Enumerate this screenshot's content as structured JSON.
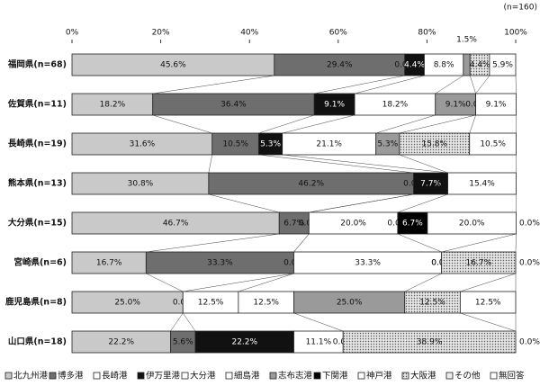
{
  "chart_data": {
    "type": "stacked-bar-horizontal",
    "note": "(n=160)",
    "categories": [
      "福岡県(n=68)",
      "佐賀県(n=11)",
      "長崎県(n=19)",
      "熊本県(n=13)",
      "大分県(n=15)",
      "宮崎県(n=6)",
      "鹿児島県(n=8)",
      "山口県(n=18)"
    ],
    "xlim": [
      0,
      100
    ],
    "xticks": [
      {
        "value": 0,
        "label": "0%"
      },
      {
        "value": 20,
        "label": "20%"
      },
      {
        "value": 40,
        "label": "40%"
      },
      {
        "value": 60,
        "label": "60%"
      },
      {
        "value": 80,
        "label": "80%"
      },
      {
        "value": 100,
        "label": "100%"
      }
    ],
    "grid": false,
    "series": [
      {
        "name": "北九州港",
        "color": "#c9c9c9",
        "values": [
          45.6,
          18.2,
          31.6,
          30.8,
          46.7,
          16.7,
          25.0,
          22.2
        ],
        "value_labels": [
          "45.6%",
          "18.2%",
          "31.6%",
          "30.8%",
          "46.7%",
          "16.7%",
          "25.0%",
          "22.2%"
        ]
      },
      {
        "name": "博多港",
        "color": "#6e6e6e",
        "values": [
          29.4,
          36.4,
          10.5,
          46.2,
          6.7,
          33.3,
          0.0,
          5.6
        ],
        "value_labels": [
          "29.4%",
          "36.4%",
          "10.5%",
          "46.2%",
          "6.7%",
          "33.3%",
          "0.0%",
          "5.6%"
        ]
      },
      {
        "name": "長崎港",
        "color": "#ffffff",
        "values": [
          0.0,
          null,
          null,
          0.0,
          0.0,
          0.0,
          12.5,
          null
        ],
        "value_labels": [
          "0.0%",
          null,
          null,
          "0.0%",
          "0.0%",
          "0.0%",
          "12.5%",
          null
        ]
      },
      {
        "name": "伊万里港",
        "color": "#111111",
        "values": [
          4.4,
          9.1,
          5.3,
          7.7,
          null,
          null,
          null,
          22.2
        ],
        "value_labels": [
          "4.4%",
          "9.1%",
          "5.3%",
          "7.7%",
          null,
          null,
          null,
          "22.2%"
        ]
      },
      {
        "name": "大分港",
        "color": "#ffffff",
        "values": [
          8.8,
          18.2,
          21.1,
          null,
          20.0,
          null,
          12.5,
          11.1
        ],
        "value_labels": [
          "8.8%",
          "18.2%",
          "21.1%",
          null,
          "20.0%",
          null,
          "12.5%",
          "11.1%"
        ]
      },
      {
        "name": "細島港",
        "color": "#ffffff",
        "values": [
          null,
          null,
          null,
          null,
          null,
          33.3,
          null,
          null
        ],
        "value_labels": [
          null,
          null,
          null,
          null,
          null,
          "33.3%",
          null,
          null
        ]
      },
      {
        "name": "志布志港",
        "color": "#9a9a9a",
        "values": [
          1.5,
          9.1,
          5.3,
          0.0,
          0.0,
          0.0,
          25.0,
          null
        ],
        "value_labels": [
          "1.5%",
          "9.1%",
          "5.3%",
          "0.0%",
          "0.0%",
          "0.0%",
          "25.0%",
          null
        ]
      },
      {
        "name": "下関港",
        "color": "#000000",
        "values": [
          null,
          null,
          null,
          null,
          6.7,
          null,
          null,
          null
        ],
        "value_labels": [
          null,
          null,
          null,
          null,
          "6.7%",
          null,
          null,
          null
        ]
      },
      {
        "name": "神戸港",
        "color": "#ffffff",
        "values": [
          null,
          null,
          null,
          null,
          20.0,
          0.0,
          null,
          0.0
        ],
        "value_labels": [
          null,
          null,
          null,
          null,
          "20.0%",
          "0.0%",
          null,
          "0.0%"
        ]
      },
      {
        "name": "大阪港",
        "color": "#d6d6d6",
        "pattern": "dots",
        "values": [
          4.4,
          0.0,
          15.8,
          null,
          null,
          16.7,
          12.5,
          38.9
        ],
        "value_labels": [
          "4.4%",
          "0.0%",
          "15.8%",
          null,
          null,
          "16.7%",
          "12.5%",
          "38.9%"
        ]
      },
      {
        "name": "その他",
        "color": "#ececec",
        "values": [
          null,
          null,
          null,
          null,
          null,
          null,
          null,
          null
        ]
      },
      {
        "name": "無回答",
        "color": "#ffffff",
        "values": [
          5.9,
          9.1,
          10.5,
          15.4,
          0.0,
          0.0,
          12.5,
          0.0
        ],
        "value_labels": [
          "5.9%",
          "9.1%",
          "10.5%",
          "15.4%",
          "0.0%",
          "0.0%",
          "12.5%",
          "0.0%"
        ]
      }
    ]
  }
}
